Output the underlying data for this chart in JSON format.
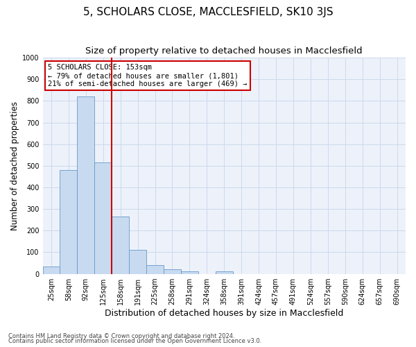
{
  "title": "5, SCHOLARS CLOSE, MACCLESFIELD, SK10 3JS",
  "subtitle": "Size of property relative to detached houses in Macclesfield",
  "xlabel": "Distribution of detached houses by size in Macclesfield",
  "ylabel": "Number of detached properties",
  "bar_labels": [
    "25sqm",
    "58sqm",
    "92sqm",
    "125sqm",
    "158sqm",
    "191sqm",
    "225sqm",
    "258sqm",
    "291sqm",
    "324sqm",
    "358sqm",
    "391sqm",
    "424sqm",
    "457sqm",
    "491sqm",
    "524sqm",
    "557sqm",
    "590sqm",
    "624sqm",
    "657sqm",
    "690sqm"
  ],
  "bar_values": [
    33,
    480,
    820,
    515,
    265,
    110,
    40,
    22,
    12,
    0,
    10,
    0,
    0,
    0,
    0,
    0,
    0,
    0,
    0,
    0,
    0
  ],
  "bar_color": "#c8daf0",
  "bar_edge_color": "#6699cc",
  "vline_index": 4,
  "vline_color": "#cc0000",
  "ylim": [
    0,
    1000
  ],
  "yticks": [
    0,
    100,
    200,
    300,
    400,
    500,
    600,
    700,
    800,
    900,
    1000
  ],
  "annotation_title": "5 SCHOLARS CLOSE: 153sqm",
  "annotation_line1": "← 79% of detached houses are smaller (1,801)",
  "annotation_line2": "21% of semi-detached houses are larger (469) →",
  "annotation_box_color": "#cc0000",
  "grid_color": "#ccd8ec",
  "bg_color": "#edf2fa",
  "footnote1": "Contains HM Land Registry data © Crown copyright and database right 2024.",
  "footnote2": "Contains public sector information licensed under the Open Government Licence v3.0.",
  "title_fontsize": 11,
  "subtitle_fontsize": 9.5,
  "xlabel_fontsize": 9,
  "ylabel_fontsize": 8.5,
  "tick_fontsize": 7,
  "annotation_fontsize": 7.5,
  "footnote_fontsize": 6
}
